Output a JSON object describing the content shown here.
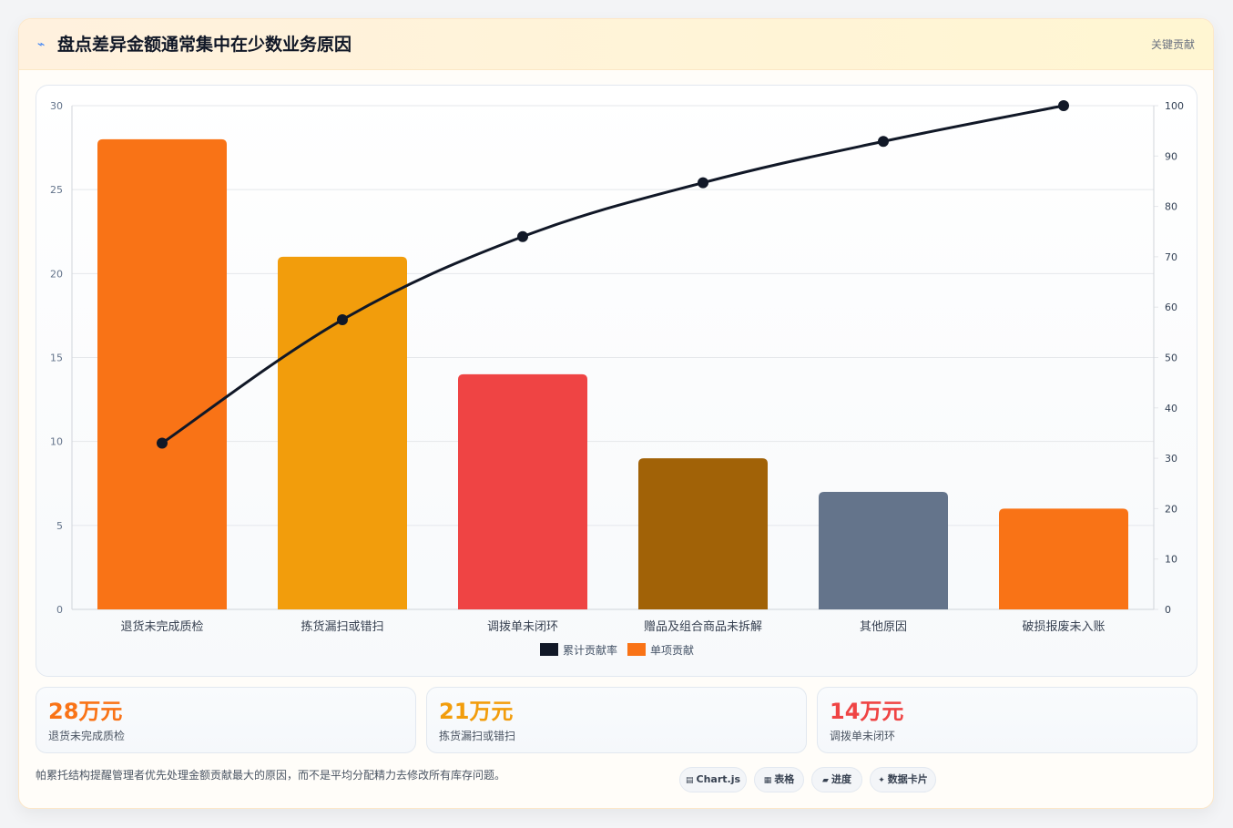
{
  "header": {
    "icon": "lightning-icon",
    "title": "盘点差异金额通常集中在少数业务原因",
    "tag": "关键贡献"
  },
  "colors": {
    "line": "#111827",
    "grid": "#e5e7eb",
    "axis_text": "#64748b",
    "category_text": "#374151"
  },
  "chart_data": {
    "type": "bar",
    "categories": [
      "退货未完成质检",
      "拣货漏扫或错扫",
      "调拨单未闭环",
      "赠品及组合商品未拆解",
      "其他原因",
      "破损报废未入账"
    ],
    "series": [
      {
        "name": "单项贡献",
        "type": "bar",
        "axis": "left",
        "values": [
          28,
          21,
          14,
          9,
          7,
          6
        ],
        "colors": [
          "#f97316",
          "#f29d0c",
          "#ef4444",
          "#a16207",
          "#64748b",
          "#f97316"
        ]
      },
      {
        "name": "累计贡献率",
        "type": "line",
        "axis": "right",
        "values": [
          33,
          57.5,
          74,
          84.7,
          92.9,
          100
        ]
      }
    ],
    "ylim": [
      0,
      30
    ],
    "yticks": [
      0,
      5,
      10,
      15,
      20,
      25,
      30
    ],
    "y2lim": [
      0,
      100
    ],
    "y2ticks": [
      0,
      10,
      20,
      30,
      40,
      50,
      60,
      70,
      80,
      90,
      100
    ],
    "grid": true,
    "legend_position": "bottom-center",
    "legend": [
      {
        "label": "累计贡献率",
        "color": "#111827"
      },
      {
        "label": "单项贡献",
        "color": "#f97316"
      }
    ]
  },
  "stats": [
    {
      "value": "28万元",
      "label": "退货未完成质检",
      "color": "#f97316"
    },
    {
      "value": "21万元",
      "label": "拣货漏扫或错扫",
      "color": "#f29d0c"
    },
    {
      "value": "14万元",
      "label": "调拨单未闭环",
      "color": "#ef4444"
    }
  ],
  "footnote": "帕累托结构提醒管理者优先处理金额贡献最大的原因，而不是平均分配精力去修改所有库存问题。",
  "chips": [
    {
      "icon": "chart-icon",
      "glyph": "▤",
      "label": "Chart.js"
    },
    {
      "icon": "table-icon",
      "glyph": "▦",
      "label": "表格"
    },
    {
      "icon": "progress-icon",
      "glyph": "▰",
      "label": "进度"
    },
    {
      "icon": "card-icon",
      "glyph": "✦",
      "label": "数据卡片"
    }
  ]
}
